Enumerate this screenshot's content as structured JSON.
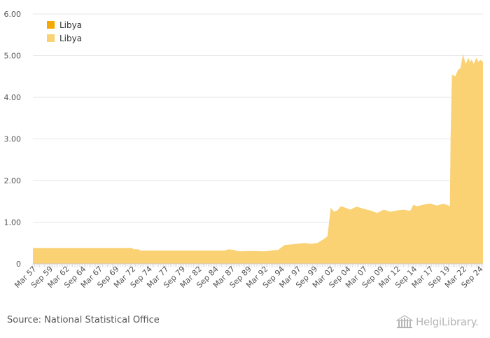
{
  "chart_data": {
    "type": "area",
    "title": "",
    "xlabel": "",
    "ylabel": "",
    "ylim": [
      0,
      6
    ],
    "yticks": [
      "0",
      "1.00",
      "2.00",
      "3.00",
      "4.00",
      "5.00",
      "6.00"
    ],
    "x_tick_labels": [
      "Mar 57",
      "Sep 59",
      "Mar 62",
      "Sep 64",
      "Mar 67",
      "Sep 69",
      "Mar 72",
      "Sep 74",
      "Mar 77",
      "Sep 79",
      "Mar 82",
      "Sep 84",
      "Mar 87",
      "Sep 89",
      "Mar 92",
      "Sep 94",
      "Mar 97",
      "Sep 99",
      "Mar 02",
      "Sep 04",
      "Mar 07",
      "Sep 09",
      "Mar 12",
      "Sep 14",
      "Mar 17",
      "Sep 19",
      "Mar 22",
      "Sep 24"
    ],
    "x_range": [
      1957.0,
      2025.0
    ],
    "legend": [
      "Libya",
      "Libya"
    ],
    "legend_position": "top-left",
    "series": [
      {
        "name": "Libya",
        "color": "#F5A800",
        "x": [],
        "values": []
      },
      {
        "name": "Libya",
        "color": "#FAD173",
        "x": [
          1957.0,
          1972.0,
          1972.2,
          1973.0,
          1973.2,
          1986.0,
          1986.5,
          1987.5,
          1988.0,
          1990.0,
          1992.0,
          1993.5,
          1994.0,
          1995.0,
          1997.0,
          1998.0,
          1999.0,
          2000.0,
          2000.5,
          2001.0,
          2001.4,
          2001.5,
          2002.0,
          2002.5,
          2003.0,
          2003.5,
          2004.0,
          2005.0,
          2005.5,
          2006.0,
          2007.0,
          2008.0,
          2009.0,
          2010.0,
          2011.0,
          2012.0,
          2013.0,
          2014.0,
          2014.5,
          2015.0,
          2016.0,
          2017.0,
          2018.0,
          2019.0,
          2019.5,
          2020.0,
          2020.1,
          2020.3,
          2020.8,
          2021.2,
          2021.6,
          2022.0,
          2022.1,
          2022.4,
          2022.8,
          2023.0,
          2023.3,
          2023.6,
          2024.0,
          2024.3,
          2024.6,
          2025.0
        ],
        "values": [
          0.38,
          0.38,
          0.35,
          0.35,
          0.32,
          0.32,
          0.35,
          0.33,
          0.3,
          0.31,
          0.3,
          0.33,
          0.33,
          0.45,
          0.48,
          0.5,
          0.48,
          0.5,
          0.55,
          0.6,
          0.65,
          0.66,
          1.35,
          1.25,
          1.28,
          1.38,
          1.36,
          1.3,
          1.35,
          1.37,
          1.32,
          1.28,
          1.22,
          1.3,
          1.25,
          1.28,
          1.3,
          1.27,
          1.42,
          1.38,
          1.42,
          1.45,
          1.4,
          1.44,
          1.42,
          1.38,
          3.0,
          4.55,
          4.5,
          4.65,
          4.7,
          5.05,
          4.95,
          4.8,
          4.95,
          4.85,
          4.9,
          4.8,
          4.95,
          4.85,
          4.9,
          4.85
        ]
      }
    ]
  },
  "footer": {
    "source": "Source: National Statistical Office",
    "brand": "HelgiLibrary."
  }
}
